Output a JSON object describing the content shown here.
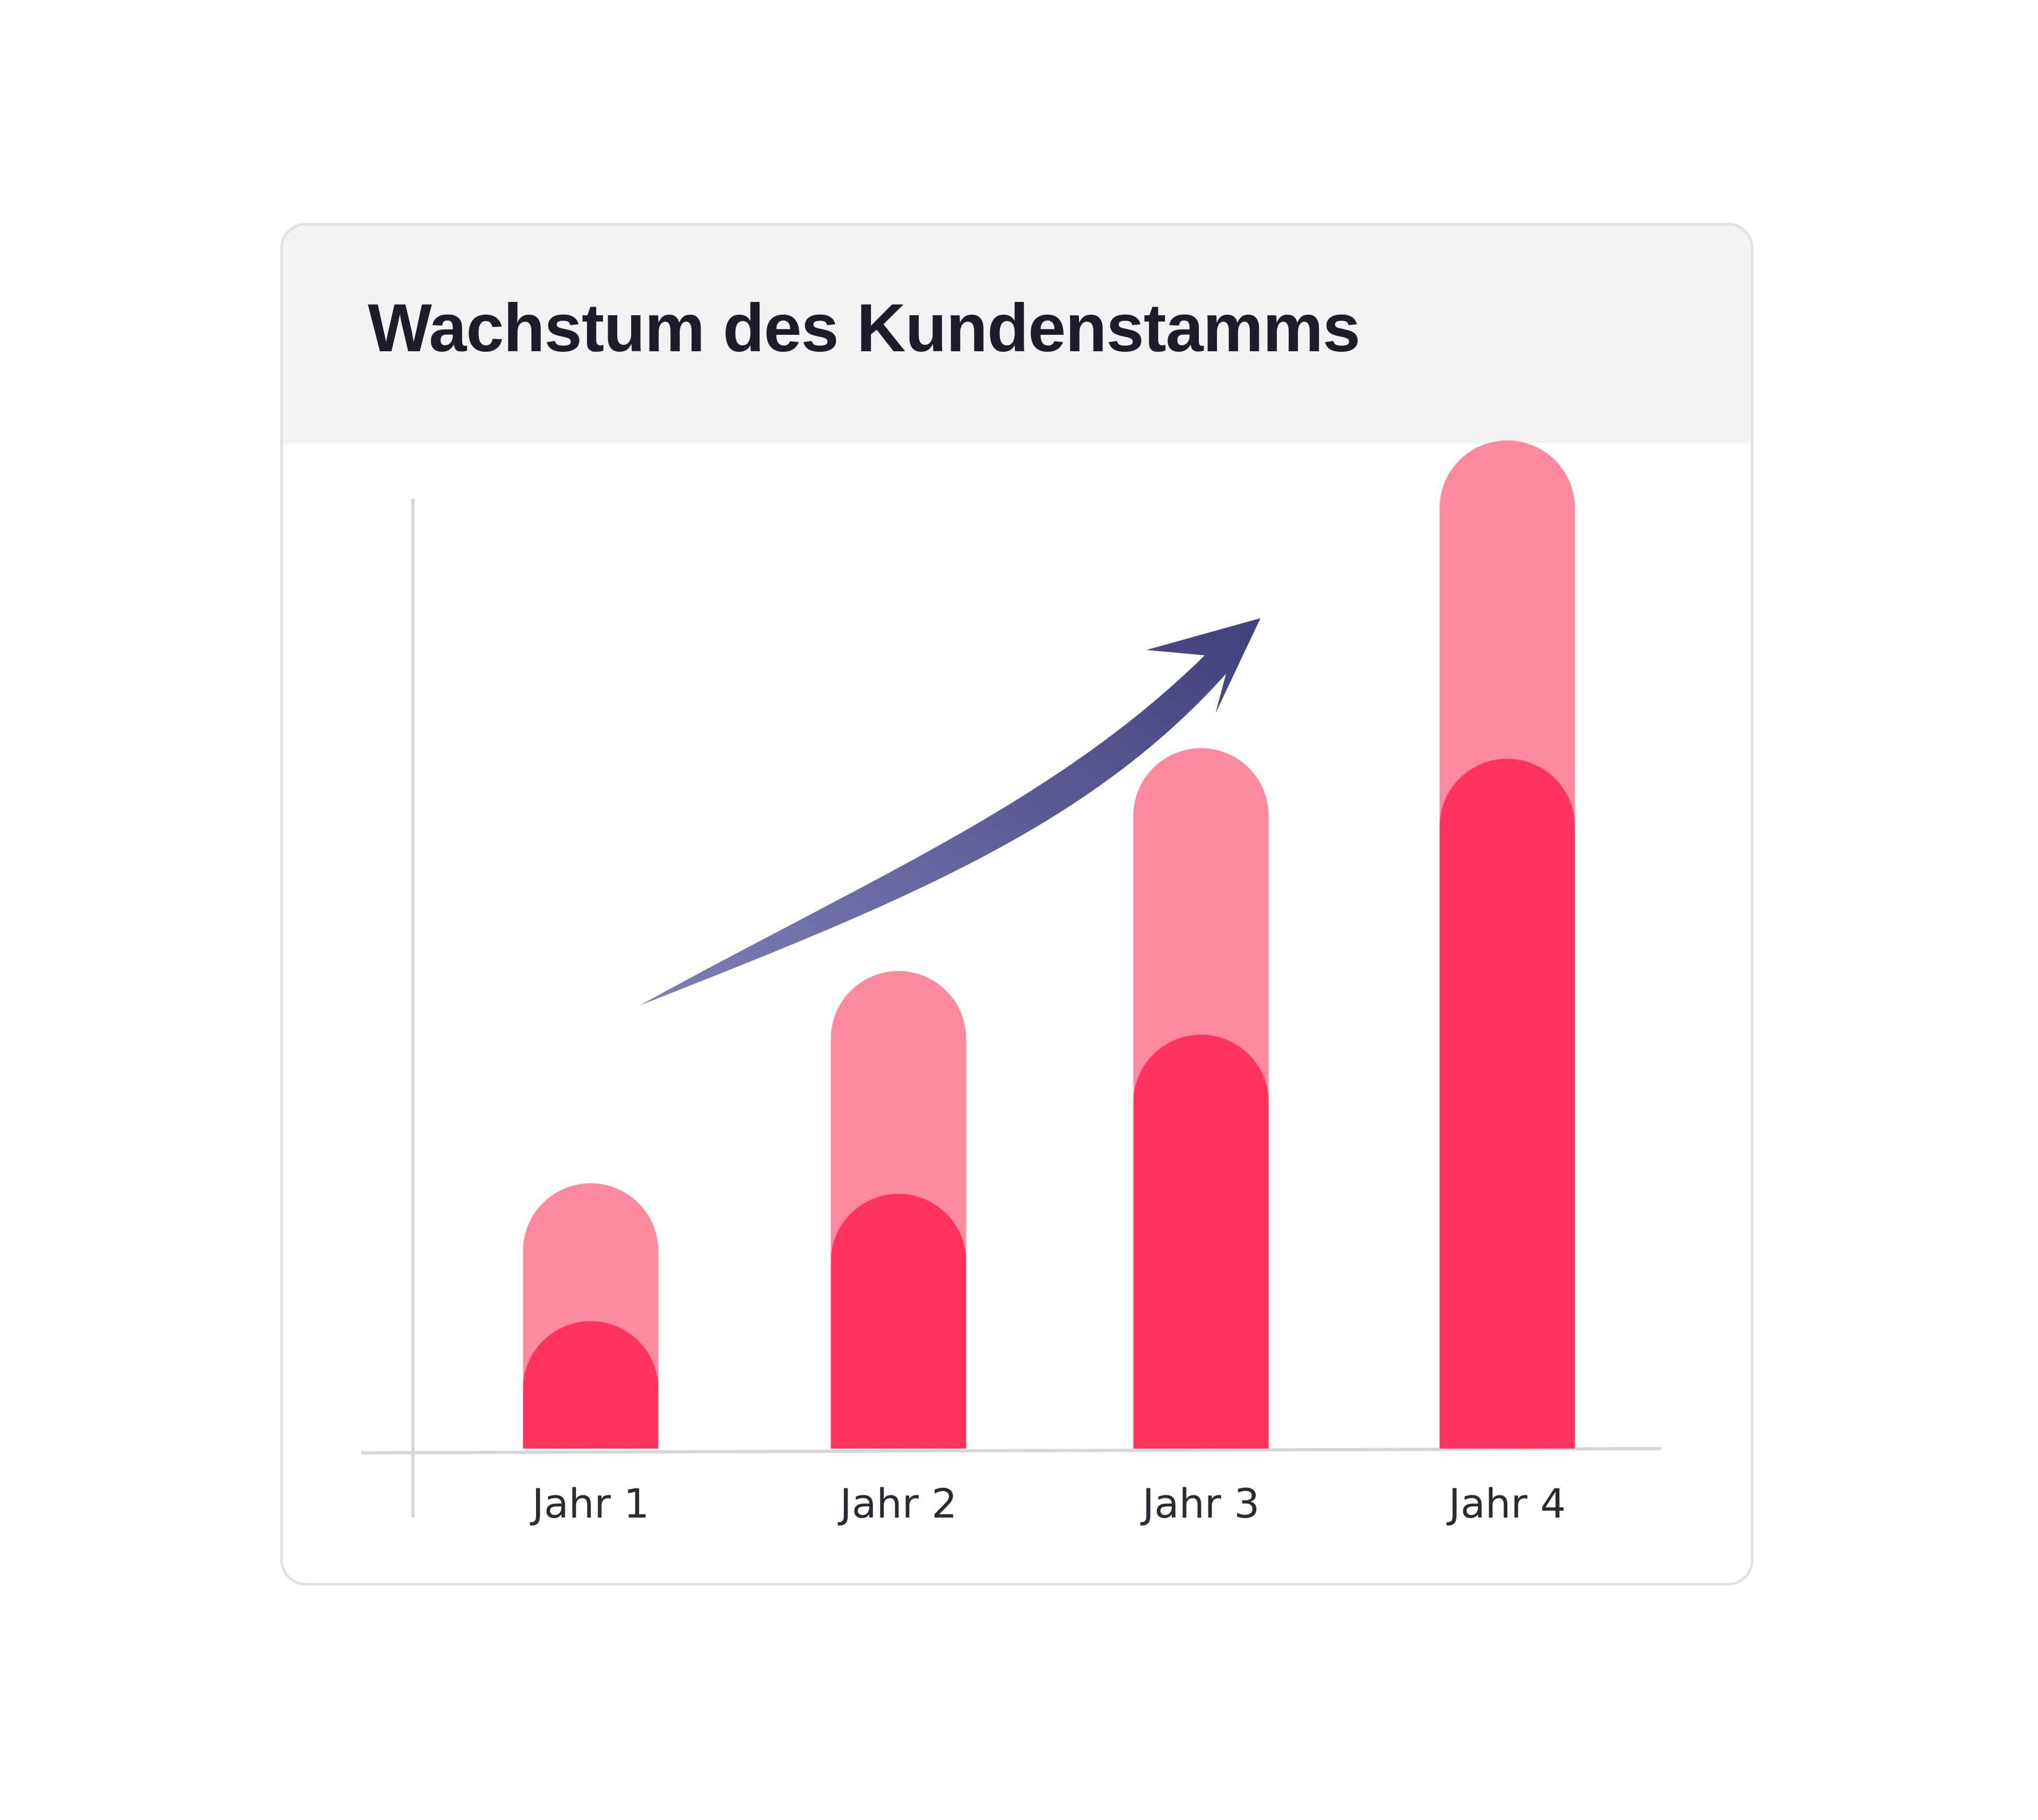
{
  "chart_data": {
    "type": "bar",
    "title": "Wachstum des Kundenstamms",
    "xlabel": "",
    "ylabel": "",
    "categories": [
      "Jahr 1",
      "Jahr 2",
      "Jahr 3",
      "Jahr 4"
    ],
    "ylim": [
      0,
      100
    ],
    "grid": false,
    "legend": "none",
    "series": [
      {
        "values": [
          25,
          45,
          66,
          95
        ],
        "color": "#ff8aa0"
      },
      {
        "values": [
          12,
          24,
          39,
          65
        ],
        "color": "#ff345e"
      }
    ],
    "annotation": {
      "type": "trend-arrow",
      "direction": "up-right",
      "color": "#4a4a85"
    }
  }
}
